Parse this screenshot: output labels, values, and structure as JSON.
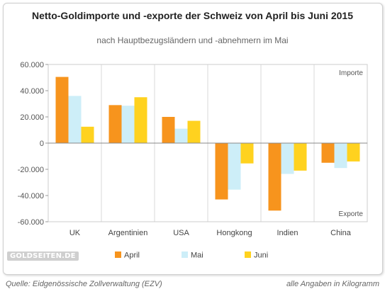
{
  "chart_data": {
    "type": "bar",
    "title": "Netto-Goldimporte und -exporte der Schweiz von April bis Juni 2015",
    "subtitle": "nach Hauptbezugsländern und -abnehmern im Mai",
    "categories": [
      "UK",
      "Argentinien",
      "USA",
      "Hongkong",
      "Indien",
      "China"
    ],
    "series": [
      {
        "name": "April",
        "color": "#f7941d",
        "values": [
          50500,
          29000,
          20000,
          -43000,
          -51500,
          -15000
        ]
      },
      {
        "name": "Mai",
        "color": "#cdeef8",
        "values": [
          36000,
          28500,
          11000,
          -35500,
          -23500,
          -19000
        ]
      },
      {
        "name": "Juni",
        "color": "#ffd21f",
        "values": [
          12500,
          35000,
          17000,
          -15500,
          -21000,
          -14000
        ]
      }
    ],
    "y_ticks": [
      "60.000",
      "40.000",
      "20.000",
      "0",
      "-20.000",
      "-40.000",
      "-60.000"
    ],
    "ylim": [
      -60000,
      60000
    ],
    "grid": "vertical lines between categories",
    "annotations": {
      "top": "Importe",
      "bottom": "Exporte"
    },
    "legend_position": "bottom"
  },
  "watermark": "GOLDSEITEN.DE",
  "footer": {
    "source": "Quelle: Eidgenössische Zollverwaltung (EZV)",
    "unit_note": "alle Angaben in Kilogramm"
  }
}
